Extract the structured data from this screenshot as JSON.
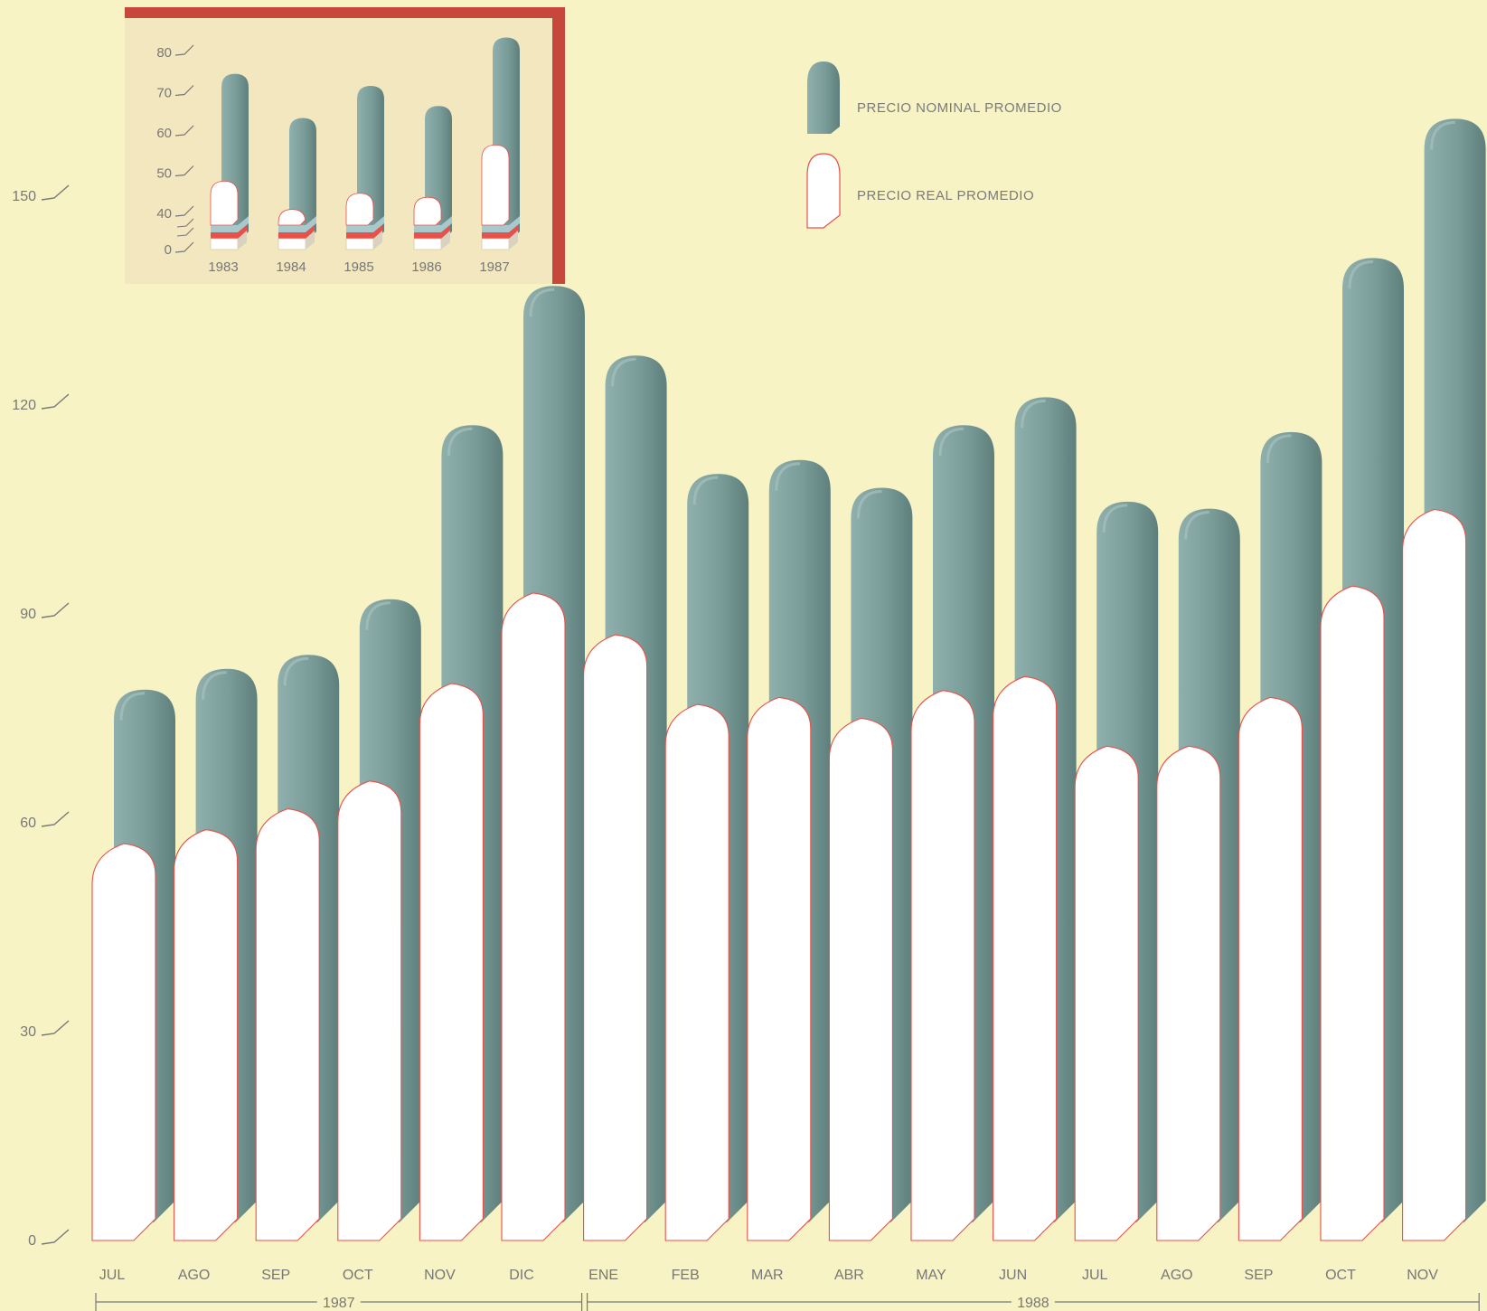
{
  "colors": {
    "background": "#f8f3c4",
    "nominal": "#7f9f9c",
    "nominal_dark": "#5f7f7c",
    "nominal_light": "#9ab6b2",
    "real": "#ffffff",
    "real_outline": "#e8504a",
    "inset_border": "#c8473c",
    "inset_background": "#f4e9c2",
    "text": "#777777"
  },
  "chart_data": [
    {
      "type": "bar",
      "title": "",
      "xlabel": "",
      "ylabel": "",
      "ylim": [
        0,
        160
      ],
      "yticks": [
        "0",
        "30",
        "60",
        "90",
        "120",
        "150"
      ],
      "categories": [
        "JUL",
        "AGO",
        "SEP",
        "OCT",
        "NOV",
        "DIC",
        "ENE",
        "FEB",
        "MAR",
        "ABR",
        "MAY",
        "JUN",
        "JUL",
        "AGO",
        "SEP",
        "OCT",
        "NOV"
      ],
      "year_groups": [
        {
          "label": "1987",
          "count": 6
        },
        {
          "label": "1988",
          "count": 11
        }
      ],
      "series": [
        {
          "name": "PRECIO NOMINAL PROMEDIO",
          "values": [
            76,
            79,
            81,
            89,
            114,
            134,
            124,
            107,
            109,
            105,
            114,
            118,
            103,
            102,
            113,
            138,
            158
          ]
        },
        {
          "name": "PRECIO REAL PROMEDIO",
          "values": [
            57,
            59,
            62,
            66,
            80,
            93,
            87,
            77,
            78,
            75,
            79,
            81,
            71,
            71,
            78,
            94,
            105
          ]
        }
      ],
      "legend": "top-right",
      "grid": false
    },
    {
      "type": "bar",
      "title": "",
      "ylim": [
        0,
        85
      ],
      "yticks": [
        "0",
        "40",
        "50",
        "60",
        "70",
        "80"
      ],
      "categories": [
        "1983",
        "1984",
        "1985",
        "1986",
        "1987"
      ],
      "series": [
        {
          "name": "PRECIO NOMINAL PROMEDIO",
          "values": [
            72,
            61,
            69,
            64,
            81
          ]
        },
        {
          "name": "PRECIO REAL PROMEDIO",
          "values": [
            48,
            41,
            45,
            44,
            57
          ]
        }
      ],
      "legend": "none",
      "grid": false
    }
  ]
}
